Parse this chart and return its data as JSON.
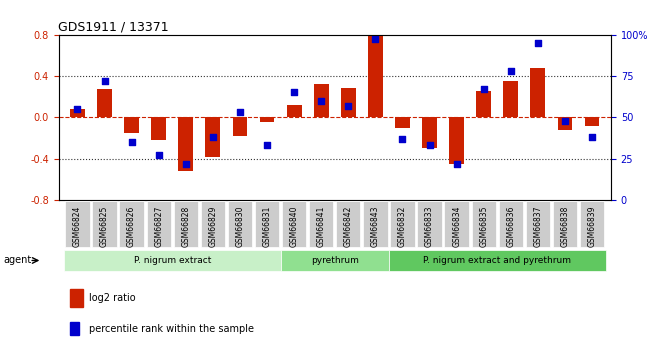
{
  "title": "GDS1911 / 13371",
  "samples": [
    "GSM66824",
    "GSM66825",
    "GSM66826",
    "GSM66827",
    "GSM66828",
    "GSM66829",
    "GSM66830",
    "GSM66831",
    "GSM66840",
    "GSM66841",
    "GSM66842",
    "GSM66843",
    "GSM66832",
    "GSM66833",
    "GSM66834",
    "GSM66835",
    "GSM66836",
    "GSM66837",
    "GSM66838",
    "GSM66839"
  ],
  "log2_ratio": [
    0.08,
    0.27,
    -0.15,
    -0.22,
    -0.52,
    -0.38,
    -0.18,
    -0.05,
    0.12,
    0.32,
    0.28,
    0.8,
    -0.1,
    -0.3,
    -0.45,
    0.25,
    0.35,
    0.48,
    -0.12,
    -0.08
  ],
  "percentile": [
    55,
    72,
    35,
    27,
    22,
    38,
    53,
    33,
    65,
    60,
    57,
    97,
    37,
    33,
    22,
    67,
    78,
    95,
    48,
    38
  ],
  "groups": [
    {
      "label": "P. nigrum extract",
      "start": 0,
      "end": 8,
      "color": "#c8f0c8"
    },
    {
      "label": "pyrethrum",
      "start": 8,
      "end": 12,
      "color": "#90e090"
    },
    {
      "label": "P. nigrum extract and pyrethrum",
      "start": 12,
      "end": 20,
      "color": "#60c860"
    }
  ],
  "bar_color": "#cc2200",
  "dot_color": "#0000cc",
  "zero_line_color": "#cc2200",
  "grid_color": "#333333",
  "ylim": [
    -0.8,
    0.8
  ],
  "y2lim": [
    0,
    100
  ],
  "yticks": [
    -0.8,
    -0.4,
    0.0,
    0.4,
    0.8
  ],
  "y2ticks": [
    0,
    25,
    50,
    75,
    100
  ],
  "y2ticklabels": [
    "0",
    "25",
    "50",
    "75",
    "100%"
  ],
  "legend_log2": "log2 ratio",
  "legend_pct": "percentile rank within the sample",
  "agent_label": "agent",
  "xlabel_color": "#555555",
  "tick_bg": "#cccccc"
}
